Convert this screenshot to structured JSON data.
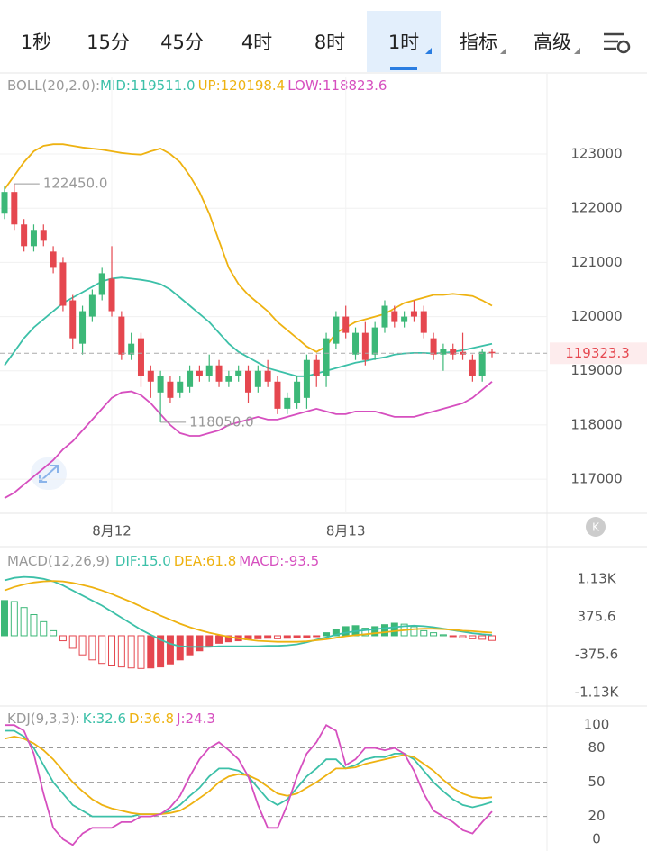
{
  "tabs": [
    "1秒",
    "15分",
    "45分",
    "4时",
    "8时",
    "1时",
    "指标",
    "高级"
  ],
  "selected_tab": 5,
  "chart_data": [
    {
      "type": "candlestick",
      "title": "BOLL(20,2.0):",
      "up_color": "#3cb878",
      "down_color": "#e5474f",
      "ylim": [
        116370,
        124430
      ],
      "yticks": [
        117000,
        118000,
        119000,
        120000,
        121000,
        122000,
        123000
      ],
      "categories": [
        null,
        null,
        null,
        null,
        null,
        null,
        null,
        null,
        null,
        null,
        null,
        "8月12",
        null,
        null,
        null,
        null,
        null,
        null,
        null,
        null,
        null,
        null,
        null,
        null,
        null,
        null,
        null,
        null,
        null,
        null,
        null,
        null,
        null,
        null,
        null,
        "8月13",
        null,
        null,
        null,
        null,
        null,
        null,
        null,
        null,
        null,
        null,
        null,
        null,
        null,
        null,
        null
      ],
      "candles": [
        [
          121900,
          122400,
          121800,
          122300
        ],
        [
          122300,
          122450,
          121600,
          121700
        ],
        [
          121700,
          121800,
          121200,
          121300
        ],
        [
          121300,
          121700,
          121200,
          121600
        ],
        [
          121600,
          121700,
          121300,
          121400
        ],
        [
          121200,
          121300,
          120800,
          120900
        ],
        [
          121000,
          121100,
          120100,
          120200
        ],
        [
          120300,
          120400,
          119400,
          119600
        ],
        [
          119500,
          120200,
          119300,
          120100
        ],
        [
          120000,
          120500,
          119900,
          120400
        ],
        [
          120400,
          120900,
          120300,
          120800
        ],
        [
          120700,
          121300,
          120000,
          120100
        ],
        [
          120000,
          120100,
          119200,
          119300
        ],
        [
          119300,
          119700,
          119200,
          119500
        ],
        [
          119600,
          119700,
          118700,
          118900
        ],
        [
          119000,
          119100,
          118500,
          118800
        ],
        [
          118600,
          119000,
          118050,
          118900
        ],
        [
          118800,
          118900,
          118400,
          118500
        ],
        [
          118600,
          118900,
          118500,
          118800
        ],
        [
          118700,
          119100,
          118600,
          119000
        ],
        [
          119000,
          119100,
          118800,
          118900
        ],
        [
          118900,
          119300,
          118800,
          119100
        ],
        [
          119100,
          119200,
          118700,
          118800
        ],
        [
          118800,
          119000,
          118700,
          118900
        ],
        [
          118900,
          119100,
          118800,
          119000
        ],
        [
          119000,
          119100,
          118400,
          118600
        ],
        [
          118700,
          119100,
          118600,
          119000
        ],
        [
          119000,
          119200,
          118700,
          118800
        ],
        [
          118800,
          118900,
          118200,
          118300
        ],
        [
          118300,
          118600,
          118200,
          118500
        ],
        [
          118400,
          118900,
          118300,
          118800
        ],
        [
          118500,
          119300,
          118300,
          119200
        ],
        [
          119200,
          119300,
          118700,
          118900
        ],
        [
          118900,
          119700,
          118700,
          119600
        ],
        [
          119500,
          120100,
          119400,
          120000
        ],
        [
          120000,
          120200,
          119600,
          119700
        ],
        [
          119300,
          119800,
          119200,
          119700
        ],
        [
          119700,
          119900,
          119100,
          119200
        ],
        [
          119300,
          119900,
          119200,
          119800
        ],
        [
          119800,
          120300,
          119700,
          120200
        ],
        [
          120100,
          120200,
          119800,
          119900
        ],
        [
          119900,
          120100,
          119800,
          120000
        ],
        [
          120100,
          120300,
          119900,
          120000
        ],
        [
          120100,
          120200,
          119600,
          119700
        ],
        [
          119600,
          119700,
          119200,
          119300
        ],
        [
          119300,
          119500,
          119000,
          119400
        ],
        [
          119400,
          119500,
          119200,
          119300
        ],
        [
          119350,
          119700,
          119200,
          119300
        ],
        [
          119200,
          119300,
          118800,
          118900
        ],
        [
          118900,
          119400,
          118800,
          119350
        ],
        [
          119350,
          119400,
          119250,
          119323.3
        ]
      ],
      "series": [
        {
          "name": "MID:119511.0",
          "color": "#3cc0a8",
          "values": [
            119100,
            119350,
            119600,
            119800,
            119950,
            120100,
            120250,
            120350,
            120450,
            120550,
            120650,
            120700,
            120720,
            120700,
            120680,
            120650,
            120600,
            120500,
            120350,
            120200,
            120050,
            119900,
            119700,
            119500,
            119350,
            119250,
            119150,
            119050,
            119000,
            118950,
            118900,
            118900,
            118950,
            119000,
            119050,
            119100,
            119150,
            119180,
            119220,
            119250,
            119300,
            119320,
            119330,
            119330,
            119320,
            119330,
            119350,
            119380,
            119420,
            119460,
            119500
          ]
        },
        {
          "name": "UP:120198.4",
          "color": "#eeb211",
          "values": [
            122350,
            122600,
            122850,
            123050,
            123150,
            123180,
            123180,
            123150,
            123120,
            123100,
            123080,
            123050,
            123020,
            123000,
            122990,
            123050,
            123100,
            123000,
            122850,
            122600,
            122300,
            121900,
            121400,
            120900,
            120600,
            120400,
            120250,
            120100,
            119900,
            119750,
            119600,
            119450,
            119350,
            119450,
            119700,
            119800,
            119900,
            119950,
            120000,
            120050,
            120150,
            120250,
            120300,
            120350,
            120400,
            120400,
            120420,
            120400,
            120380,
            120300,
            120200
          ]
        },
        {
          "name": "LOW:118823.6",
          "color": "#d64fbf",
          "values": [
            116650,
            116750,
            116900,
            117050,
            117200,
            117350,
            117550,
            117700,
            117900,
            118100,
            118300,
            118500,
            118600,
            118620,
            118550,
            118400,
            118200,
            118000,
            117850,
            117800,
            117800,
            117850,
            117900,
            118000,
            118050,
            118100,
            118150,
            118100,
            118100,
            118150,
            118200,
            118250,
            118300,
            118250,
            118200,
            118200,
            118250,
            118250,
            118250,
            118200,
            118150,
            118150,
            118150,
            118200,
            118250,
            118300,
            118350,
            118400,
            118500,
            118650,
            118800
          ]
        }
      ],
      "annotations": [
        {
          "index": 1,
          "value": 122450,
          "label": "122450.0"
        },
        {
          "index": 16,
          "value": 118050,
          "label": "118050.0"
        }
      ],
      "last_price": 119323.3
    },
    {
      "type": "macd",
      "title": "MACD(12,26,9)",
      "up_color": "#3cb878",
      "down_color": "#e5474f",
      "ylim": [
        -1325,
        1718
      ],
      "yticks": [
        {
          "value": -1126.8,
          "label": "-1.13K"
        },
        -375.6,
        375.6,
        {
          "value": 1126.8,
          "label": "1.13K"
        }
      ],
      "histogram": {
        "name": "MACD:-93.5",
        "color": "#d64fbf",
        "values": [
          700,
          680,
          560,
          420,
          280,
          100,
          -100,
          -250,
          -380,
          -480,
          -550,
          -600,
          -620,
          -640,
          -650,
          -640,
          -620,
          -560,
          -480,
          -380,
          -300,
          -200,
          -150,
          -120,
          -100,
          -80,
          -60,
          -50,
          -60,
          -50,
          -40,
          -30,
          -10,
          60,
          120,
          180,
          200,
          150,
          180,
          220,
          250,
          230,
          180,
          100,
          60,
          20,
          -10,
          -40,
          -60,
          -70,
          -93.5
        ]
      },
      "series": [
        {
          "name": "DIF:15.0",
          "color": "#3cc0a8",
          "values": [
            1100,
            1150,
            1170,
            1160,
            1130,
            1080,
            1000,
            900,
            800,
            700,
            600,
            480,
            360,
            240,
            120,
            20,
            -80,
            -160,
            -210,
            -220,
            -220,
            -220,
            -210,
            -210,
            -210,
            -210,
            -210,
            -200,
            -200,
            -190,
            -170,
            -130,
            -80,
            -30,
            20,
            60,
            90,
            110,
            130,
            150,
            170,
            190,
            200,
            190,
            170,
            140,
            110,
            80,
            50,
            30,
            15
          ]
        },
        {
          "name": "DEA:61.8",
          "color": "#eeb211",
          "values": [
            900,
            970,
            1020,
            1060,
            1080,
            1090,
            1080,
            1050,
            1010,
            960,
            900,
            830,
            750,
            670,
            580,
            490,
            400,
            320,
            240,
            170,
            110,
            60,
            20,
            -20,
            -50,
            -80,
            -100,
            -110,
            -120,
            -120,
            -120,
            -110,
            -90,
            -70,
            -40,
            -10,
            10,
            30,
            50,
            70,
            90,
            110,
            130,
            140,
            140,
            130,
            120,
            100,
            90,
            75,
            61.8
          ]
        }
      ]
    },
    {
      "type": "line",
      "title": "KDJ(9,3,3):",
      "ylim": [
        -10.3,
        112
      ],
      "yticks": [
        0,
        20,
        50,
        80,
        100
      ],
      "series": [
        {
          "name": "K:32.6",
          "color": "#3cc0a8",
          "values": [
            95,
            95,
            90,
            80,
            65,
            50,
            40,
            30,
            25,
            20,
            20,
            20,
            20,
            20,
            22,
            22,
            22,
            25,
            30,
            38,
            45,
            55,
            62,
            62,
            60,
            55,
            45,
            35,
            30,
            35,
            45,
            55,
            62,
            70,
            70,
            62,
            65,
            70,
            72,
            72,
            75,
            75,
            70,
            60,
            50,
            42,
            35,
            30,
            28,
            30,
            32.6
          ]
        },
        {
          "name": "D:36.8",
          "color": "#eeb211",
          "values": [
            88,
            90,
            88,
            84,
            78,
            70,
            60,
            50,
            42,
            35,
            30,
            27,
            25,
            23,
            22,
            22,
            22,
            23,
            25,
            30,
            36,
            42,
            50,
            55,
            57,
            56,
            52,
            46,
            40,
            38,
            40,
            45,
            50,
            56,
            62,
            62,
            63,
            66,
            68,
            70,
            72,
            74,
            72,
            66,
            60,
            52,
            45,
            40,
            37,
            36,
            36.8
          ]
        },
        {
          "name": "J:24.3",
          "color": "#d64fbf",
          "values": [
            100,
            100,
            95,
            75,
            40,
            10,
            0,
            -5,
            5,
            10,
            10,
            10,
            15,
            15,
            20,
            20,
            22,
            28,
            38,
            55,
            70,
            80,
            85,
            78,
            70,
            55,
            30,
            10,
            10,
            30,
            55,
            75,
            85,
            100,
            95,
            65,
            70,
            80,
            80,
            78,
            80,
            75,
            60,
            40,
            25,
            20,
            15,
            8,
            5,
            15,
            24.3
          ]
        }
      ]
    }
  ]
}
